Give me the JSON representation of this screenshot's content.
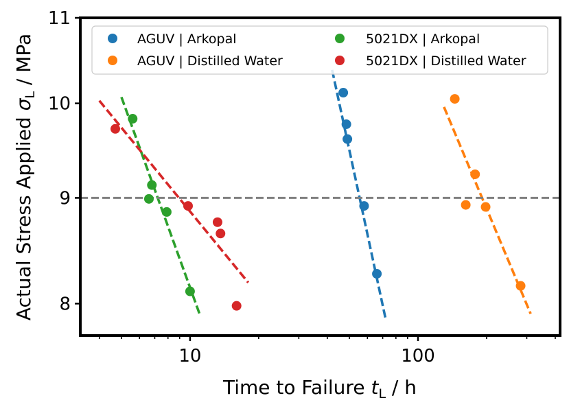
{
  "chart_data": {
    "type": "scatter",
    "xscale": "log",
    "yscale": "log",
    "xlim": [
      3.3,
      420
    ],
    "ylim": [
      7.72,
      11
    ],
    "xlabel": {
      "main": "Time to Failure ",
      "symbol": "t",
      "sub": "L",
      "tail": " / h"
    },
    "ylabel": {
      "main": "Actual Stress Applied ",
      "symbol": "σ",
      "sub": "L",
      "tail": " / MPa"
    },
    "xticks": [
      {
        "value": 10,
        "label": "10"
      },
      {
        "value": 100,
        "label": "100"
      }
    ],
    "yticks": [
      {
        "value": 8,
        "label": "8"
      },
      {
        "value": 9,
        "label": "9"
      },
      {
        "value": 10,
        "label": "10"
      },
      {
        "value": 11,
        "label": "11"
      }
    ],
    "reference_line": {
      "y": 9.0,
      "color": "#808080",
      "style": "dashed"
    },
    "legend": {
      "placement": "top",
      "columns": 2
    },
    "series": [
      {
        "name": "AGUV | Arkopal",
        "color": "#1f77b4",
        "x": [
          47,
          48.5,
          49,
          58,
          66
        ],
        "y": [
          10.12,
          9.77,
          9.61,
          8.92,
          8.27
        ],
        "fit": {
          "x": [
            42,
            72
          ],
          "y": [
            10.38,
            7.87
          ]
        }
      },
      {
        "name": "AGUV | Distilled Water",
        "color": "#ff7f0e",
        "x": [
          145,
          162,
          178,
          198,
          282
        ],
        "y": [
          10.05,
          8.93,
          9.24,
          8.91,
          8.16
        ],
        "fit": {
          "x": [
            130,
            312
          ],
          "y": [
            9.96,
            7.91
          ]
        }
      },
      {
        "name": "5021DX | Arkopal",
        "color": "#2ca02c",
        "x": [
          5.6,
          6.6,
          6.8,
          7.9,
          10
        ],
        "y": [
          9.83,
          8.99,
          9.13,
          8.86,
          8.11
        ],
        "fit": {
          "x": [
            5.0,
            11
          ],
          "y": [
            10.07,
            7.91
          ]
        }
      },
      {
        "name": "5021DX | Distilled Water",
        "color": "#d62728",
        "x": [
          4.7,
          9.8,
          13.2,
          13.6,
          16
        ],
        "y": [
          9.72,
          8.92,
          8.76,
          8.65,
          7.98
        ],
        "fit": {
          "x": [
            4.0,
            18
          ],
          "y": [
            10.03,
            8.19
          ]
        }
      }
    ]
  }
}
